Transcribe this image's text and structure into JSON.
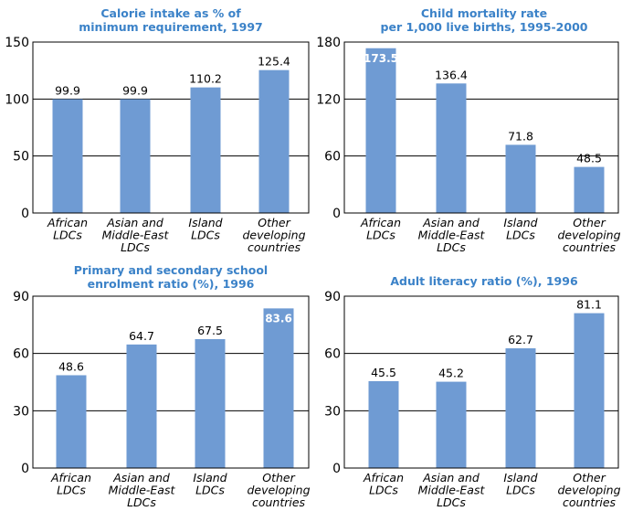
{
  "colors": {
    "bar": "#6f9bd3",
    "title": "#3b82c8",
    "axis": "#000000"
  },
  "chart_data": [
    {
      "type": "bar",
      "title_lines": [
        "Calorie intake as % of",
        "minimum requirement, 1997"
      ],
      "categories": [
        [
          "African",
          "LDCs"
        ],
        [
          "Asian and",
          "Middle-East",
          "LDCs"
        ],
        [
          "Island",
          "LDCs"
        ],
        [
          "Other",
          "developing",
          "countries"
        ]
      ],
      "values": [
        99.9,
        99.9,
        110.2,
        125.4
      ],
      "value_labels": [
        "99.9",
        "99.9",
        "110.2",
        "125.4"
      ],
      "yticks": [
        0,
        50,
        100,
        150
      ],
      "ylim": [
        0,
        150
      ],
      "grid": true
    },
    {
      "type": "bar",
      "title_lines": [
        "Child mortality rate",
        "per 1,000 live births, 1995-2000"
      ],
      "categories": [
        [
          "African",
          "LDCs"
        ],
        [
          "Asian and",
          "Middle-East",
          "LDCs"
        ],
        [
          "Island",
          "LDCs"
        ],
        [
          "Other",
          "developing",
          "countries"
        ]
      ],
      "values": [
        173.5,
        136.4,
        71.8,
        48.5
      ],
      "value_labels": [
        "173.5",
        "136.4",
        "71.8",
        "48.5"
      ],
      "yticks": [
        0,
        60,
        120,
        180
      ],
      "ylim": [
        0,
        180
      ],
      "grid": true
    },
    {
      "type": "bar",
      "title_lines": [
        "Primary and secondary school",
        "enrolment ratio (%), 1996"
      ],
      "categories": [
        [
          "African",
          "LDCs"
        ],
        [
          "Asian and",
          "Middle-East",
          "LDCs"
        ],
        [
          "Island",
          "LDCs"
        ],
        [
          "Other",
          "developing",
          "countries"
        ]
      ],
      "values": [
        48.6,
        64.7,
        67.5,
        83.6
      ],
      "value_labels": [
        "48.6",
        "64.7",
        "67.5",
        "83.6"
      ],
      "yticks": [
        0,
        30,
        60,
        90
      ],
      "ylim": [
        0,
        90
      ],
      "grid": true
    },
    {
      "type": "bar",
      "title_lines": [
        "Adult literacy ratio (%), 1996"
      ],
      "categories": [
        [
          "African",
          "LDCs"
        ],
        [
          "Asian and",
          "Middle-East",
          "LDCs"
        ],
        [
          "Island",
          "LDCs"
        ],
        [
          "Other",
          "developing",
          "countries"
        ]
      ],
      "values": [
        45.5,
        45.2,
        62.7,
        81.1
      ],
      "value_labels": [
        "45.5",
        "45.2",
        "62.7",
        "81.1"
      ],
      "yticks": [
        0,
        30,
        60,
        90
      ],
      "ylim": [
        0,
        90
      ],
      "grid": true
    }
  ]
}
